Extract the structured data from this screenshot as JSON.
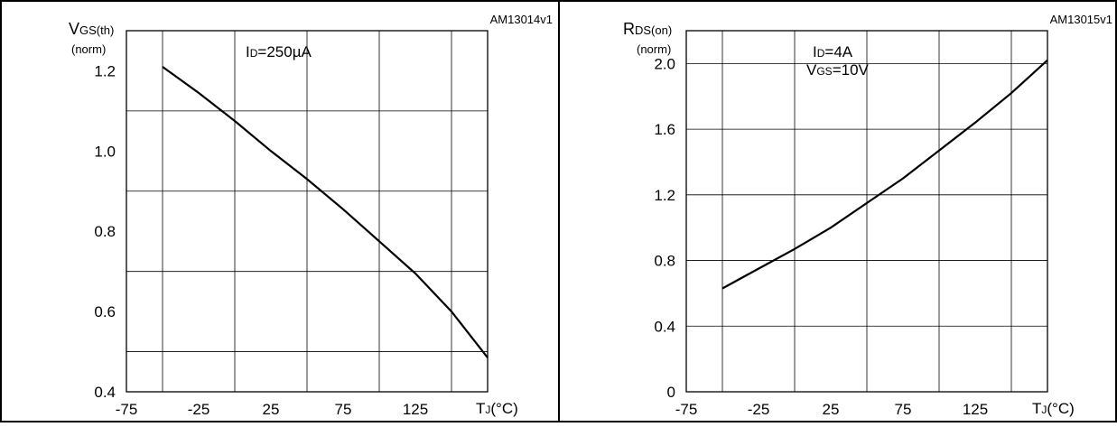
{
  "chart_data": [
    {
      "type": "line",
      "figure_id": "AM13014v1",
      "y_label": {
        "main": "V",
        "sub": "GS(th)",
        "unit": "(norm)"
      },
      "x_label": {
        "main": "T",
        "sub": "J",
        "unit": "(°C)"
      },
      "annotation": [
        {
          "main": "I",
          "sub": "D",
          "rest": "=250µA"
        }
      ],
      "xlim": [
        -75,
        175
      ],
      "ylim": [
        0.4,
        1.3
      ],
      "x_ticks": [
        -75,
        -25,
        25,
        75,
        125
      ],
      "x_tick_labels": [
        "-75",
        "-25",
        "25",
        "75",
        "125"
      ],
      "y_ticks": [
        0.4,
        0.6,
        0.8,
        1.0,
        1.2
      ],
      "y_tick_labels": [
        "0.4",
        "0.6",
        "0.8",
        "1.0",
        "1.2"
      ],
      "x_grid": [
        -50,
        0,
        50,
        100,
        150
      ],
      "y_grid": [
        0.5,
        0.7,
        0.9,
        1.1,
        1.3
      ],
      "grid": true,
      "series": [
        {
          "x": [
            -50,
            -25,
            0,
            25,
            50,
            75,
            100,
            125,
            150,
            175
          ],
          "y": [
            1.21,
            1.145,
            1.075,
            1.0,
            0.93,
            0.855,
            0.775,
            0.695,
            0.6,
            0.485
          ]
        }
      ]
    },
    {
      "type": "line",
      "figure_id": "AM13015v1",
      "y_label": {
        "main": "R",
        "sub": "DS(on)",
        "unit": "(norm)"
      },
      "x_label": {
        "main": "T",
        "sub": "J",
        "unit": "(°C)"
      },
      "annotation": [
        {
          "main": "I",
          "sub": "D",
          "rest": "=4A"
        },
        {
          "main": "V",
          "sub": "GS",
          "rest": "=10V"
        }
      ],
      "xlim": [
        -75,
        175
      ],
      "ylim": [
        0,
        2.2
      ],
      "x_ticks": [
        -75,
        -25,
        25,
        75,
        125
      ],
      "x_tick_labels": [
        "-75",
        "-25",
        "25",
        "75",
        "125"
      ],
      "y_ticks": [
        0,
        0.4,
        0.8,
        1.2,
        1.6,
        2.0
      ],
      "y_tick_labels": [
        "0",
        "0.4",
        "0.8",
        "1.2",
        "1.6",
        "2.0"
      ],
      "x_grid": [
        -50,
        0,
        50,
        100,
        150
      ],
      "y_grid": [
        0.4,
        0.8,
        1.2,
        1.6,
        2.0
      ],
      "grid": true,
      "series": [
        {
          "x": [
            -50,
            -25,
            0,
            25,
            50,
            75,
            100,
            125,
            150,
            175
          ],
          "y": [
            0.63,
            0.75,
            0.87,
            1.0,
            1.15,
            1.3,
            1.47,
            1.64,
            1.82,
            2.02
          ]
        }
      ]
    }
  ]
}
